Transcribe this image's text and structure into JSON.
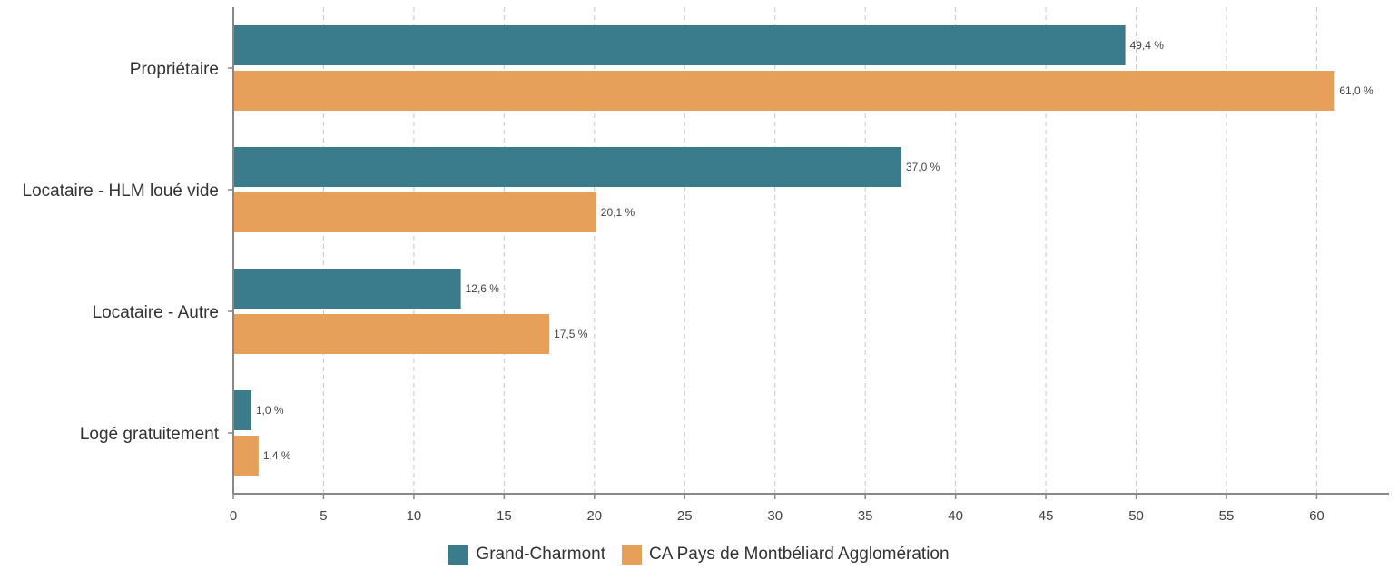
{
  "chart_data": {
    "type": "bar",
    "orientation": "horizontal",
    "categories": [
      "Propriétaire",
      "Locataire - HLM loué vide",
      "Locataire - Autre",
      "Logé gratuitement"
    ],
    "series": [
      {
        "name": "Grand-Charmont",
        "color": "#3a7b8c",
        "values": [
          49.4,
          37.0,
          12.6,
          1.0
        ],
        "labels": [
          "49,4 %",
          "37,0 %",
          "12,6 %",
          "1,0 %"
        ]
      },
      {
        "name": "CA Pays de Montbéliard Agglomération",
        "color": "#e6a05a",
        "values": [
          61.0,
          20.1,
          17.5,
          1.4
        ],
        "labels": [
          "61,0 %",
          "20,1 %",
          "17,5 %",
          "1,4 %"
        ]
      }
    ],
    "xlim": [
      0,
      64
    ],
    "xticks": [
      0,
      5,
      10,
      15,
      20,
      25,
      30,
      35,
      40,
      45,
      50,
      55,
      60
    ],
    "grid": true,
    "legend_position": "bottom"
  }
}
